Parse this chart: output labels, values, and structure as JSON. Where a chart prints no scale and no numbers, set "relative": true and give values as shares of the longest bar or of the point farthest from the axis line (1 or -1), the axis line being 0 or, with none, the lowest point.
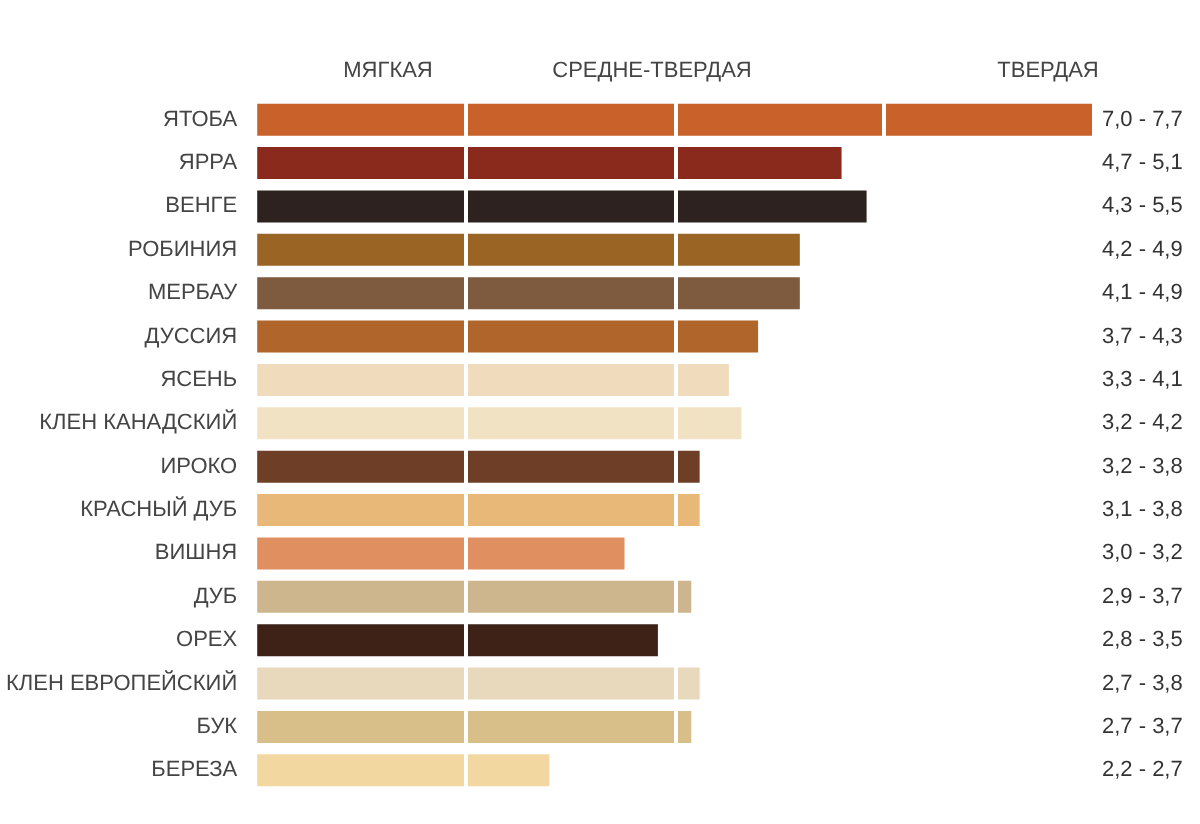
{
  "chart_data": {
    "type": "bar",
    "orientation": "horizontal",
    "relative": true,
    "categories": [
      "ЯТОБА",
      "ЯРРА",
      "ВЕНГЕ",
      "РОБИНИЯ",
      "МЕРБАУ",
      "ДУССИЯ",
      "ЯСЕНЬ",
      "КЛЕН КАНАДСКИЙ",
      "ИРОКО",
      "КРАСНЫЙ ДУБ",
      "ВИШНЯ",
      "ДУБ",
      "ОРЕХ",
      "КЛЕН ЕВРОПЕЙСКИЙ",
      "БУК",
      "БЕРЕЗА"
    ],
    "values": [
      1,
      0.7,
      0.73,
      0.65,
      0.65,
      0.6,
      0.565,
      0.58,
      0.53,
      0.53,
      0.44,
      0.52,
      0.48,
      0.53,
      0.52,
      0.35
    ],
    "colors": [
      "#c8622a",
      "#8a2a1c",
      "#2e2220",
      "#9a6424",
      "#7e5a3e",
      "#b0652a",
      "#f0dcbc",
      "#f2e2c4",
      "#6e3e26",
      "#e8b878",
      "#e09060",
      "#cdb58e",
      "#3e2218",
      "#e8d8bc",
      "#d8bf8a",
      "#f2d8a0"
    ],
    "ref_lines": [
      {
        "axis": "x",
        "value": 0.25,
        "color": "#ffffff"
      },
      {
        "axis": "x",
        "value": 0.5,
        "color": "#ffffff"
      },
      {
        "axis": "x",
        "value": 0.75,
        "color": "#ffffff"
      }
    ],
    "annotations": [
      "МЯГКАЯ",
      "СРЕДНЕ-ТВЕРДАЯ",
      "ТВЕРДАЯ",
      "7,0 - 7,7",
      "4,7 - 5,1",
      "4,3 - 5,5",
      "4,2 - 4,9",
      "4,1 - 4,9",
      "3,7 - 4,3",
      "3,3 - 4,1",
      "3,2 - 4,2",
      "3,2 - 3,8",
      "3,1 - 3,8",
      "3,0 - 3,2",
      "2,9 - 3,7",
      "2,8 - 3,5",
      "2,7 - 3,8",
      "2,7 - 3,7",
      "2,2 - 2,7"
    ]
  }
}
